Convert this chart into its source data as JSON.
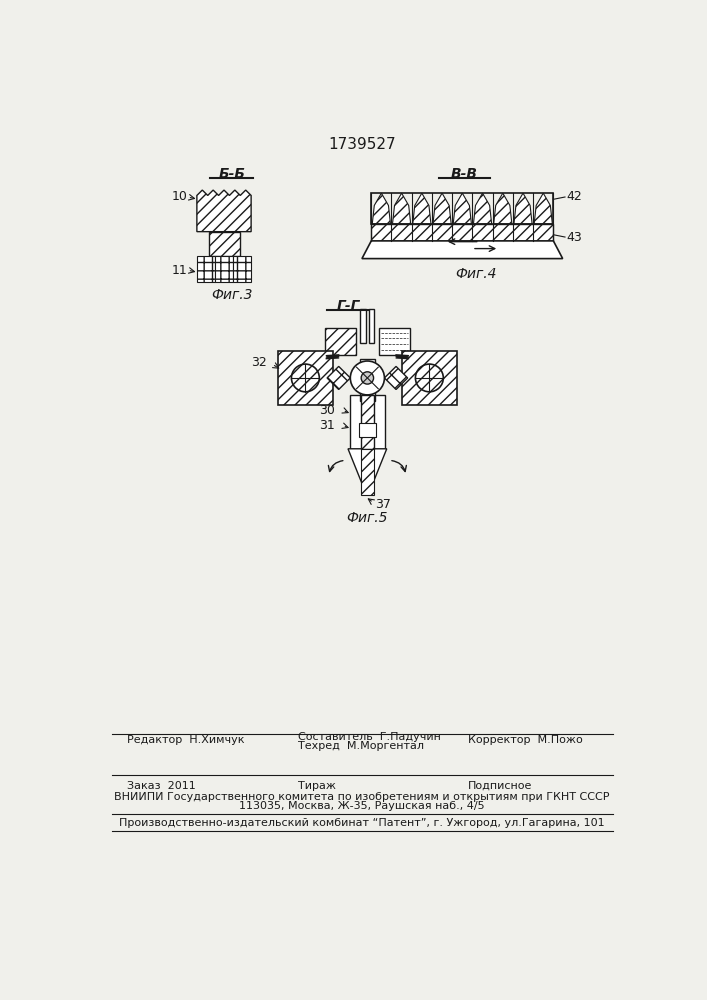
{
  "title": "1739527",
  "fig3_label": "Фиг.3",
  "fig4_label": "Фиг.4",
  "fig5_label": "Фиг.5",
  "section_bb": "Б-Б",
  "section_vv": "В-В",
  "section_gg": "Г-Г",
  "num10": "10",
  "num11": "11",
  "num42": "42",
  "num43": "43",
  "num30": "30",
  "num31": "31",
  "num32": "32",
  "num37": "37",
  "editor_line": "Редактор  Н.Химчук",
  "composer_line": "Составитель  Г.Падучин",
  "techred_line": "Техред  М.Моргентал",
  "corrector_line": "Корректор  М.Пожо",
  "order_line": "Заказ  2011",
  "tirazh_line": "Тираж",
  "podpisnoe_line": "Подписное",
  "vniiipi_line": "ВНИИПИ Государственного комитета по изобретениям и открытиям при ГКНТ СССР",
  "address_line": "113035, Москва, Ж-35, Раушская наб., 4/5",
  "factory_line": "Производственно-издательский комбинат “Патент”, г. Ужгород, ул.Гагарина, 101",
  "bg_color": "#f0f0eb",
  "line_color": "#1a1a1a",
  "text_color": "#1a1a1a"
}
